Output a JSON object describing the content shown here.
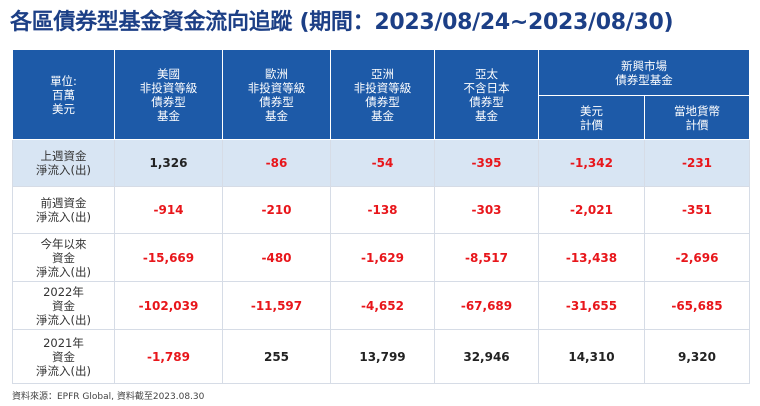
{
  "title": "各區債券型基金資金流向追蹤 (期間：2023/08/24~2023/08/30)",
  "header": {
    "unit": [
      "單位:",
      "百萬",
      "美元"
    ],
    "col_us": [
      "美國",
      "非投資等級",
      "債券型",
      "基金"
    ],
    "col_eu": [
      "歐洲",
      "非投資等級",
      "債券型",
      "基金"
    ],
    "col_asia": [
      "亞洲",
      "非投資等級",
      "債券型",
      "基金"
    ],
    "col_apac": [
      "亞太",
      "不含日本",
      "債券型",
      "基金"
    ],
    "col_em_group": [
      "新興市場",
      "債券型基金"
    ],
    "col_em_usd": [
      "美元",
      "計價"
    ],
    "col_em_local": [
      "當地貨幣",
      "計價"
    ]
  },
  "rows": [
    {
      "label": [
        "上週資金",
        "淨流入(出)"
      ],
      "values": [
        "1,326",
        "-86",
        "-54",
        "-395",
        "-1,342",
        "-231"
      ]
    },
    {
      "label": [
        "前週資金",
        "淨流入(出)"
      ],
      "values": [
        "-914",
        "-210",
        "-138",
        "-303",
        "-2,021",
        "-351"
      ]
    },
    {
      "label": [
        "今年以來",
        "資金",
        "淨流入(出)"
      ],
      "values": [
        "-15,669",
        "-480",
        "-1,629",
        "-8,517",
        "-13,438",
        "-2,696"
      ]
    },
    {
      "label": [
        "2022年",
        "資金",
        "淨流入(出)"
      ],
      "values": [
        "-102,039",
        "-11,597",
        "-4,652",
        "-67,689",
        "-31,655",
        "-65,685"
      ]
    },
    {
      "label": [
        "2021年",
        "資金",
        "淨流入(出)"
      ],
      "values": [
        "-1,789",
        "255",
        "13,799",
        "32,946",
        "14,310",
        "9,320"
      ]
    }
  ],
  "source": "資料來源：EPFR Global, 資料截至2023.08.30",
  "colors": {
    "title": "#1c3f86",
    "header_bg": "#1d5aa8",
    "highlight_row_bg": "#d8e5f3",
    "negative": "#e8161b",
    "positive": "#222222"
  }
}
